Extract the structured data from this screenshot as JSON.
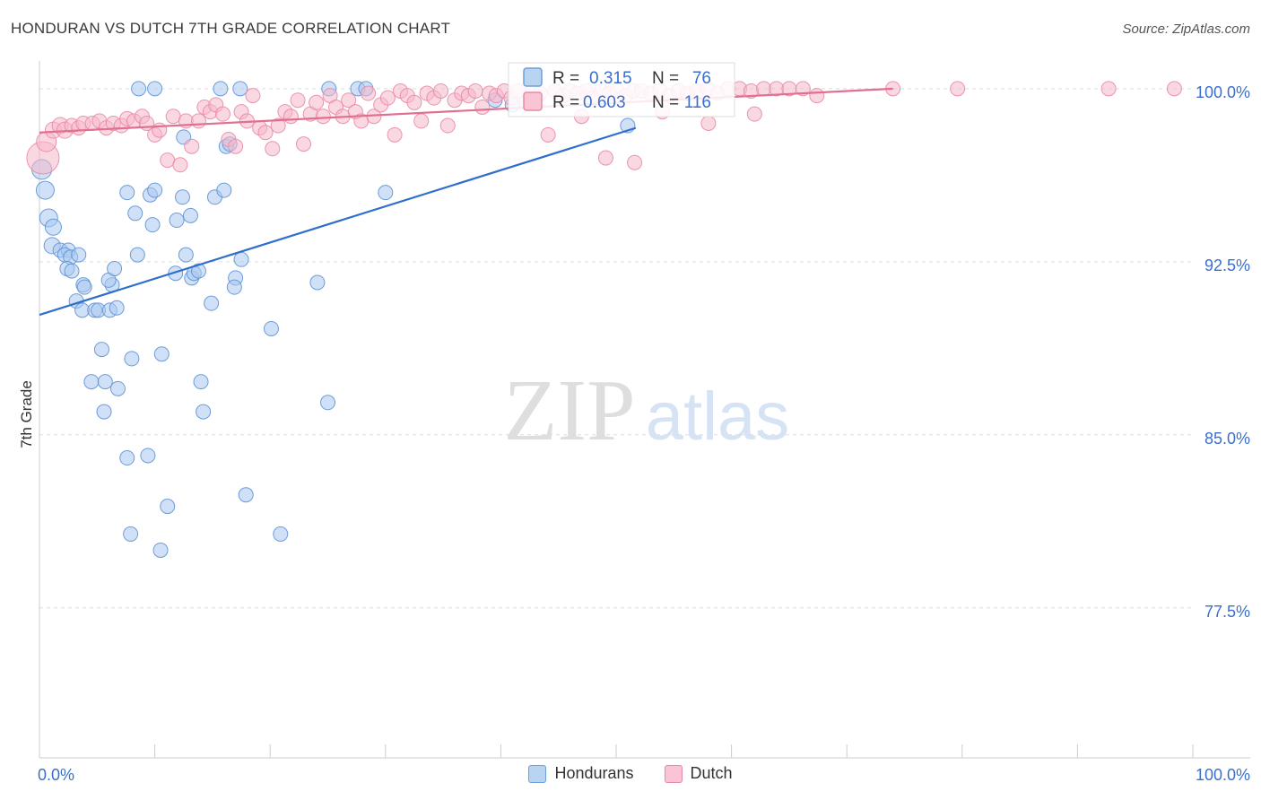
{
  "chart_data": {
    "type": "scatter",
    "title": "HONDURAN VS DUTCH 7TH GRADE CORRELATION CHART",
    "source": "Source: ZipAtlas.com",
    "watermark": {
      "zip": "ZIP",
      "atlas": "atlas"
    },
    "xlabel": "",
    "ylabel": "7th Grade",
    "xlim": [
      0,
      100
    ],
    "ylim": [
      71.0,
      101.2
    ],
    "x_tick_labels": {
      "left": "0.0%",
      "right": "100.0%"
    },
    "y_ticks": [
      {
        "value": 100.0,
        "label": "100.0%"
      },
      {
        "value": 92.5,
        "label": "92.5%"
      },
      {
        "value": 85.0,
        "label": "85.0%"
      },
      {
        "value": 77.5,
        "label": "77.5%"
      }
    ],
    "colors": {
      "honduran_fill": "#a9c9f0",
      "honduran_stroke": "#5d93d6",
      "honduran_line": "#2f6fcc",
      "dutch_fill": "#f6b8cb",
      "dutch_stroke": "#e98aa8",
      "dutch_line": "#e0708f",
      "value_text": "#3a6fcd",
      "grid": "#dddddd"
    },
    "legend_stats": [
      {
        "name": "Hondurans",
        "r_label": "R =",
        "r": "0.315",
        "n_label": "N =",
        "n": "76"
      },
      {
        "name": "Dutch",
        "r_label": "R =",
        "r": "0.603",
        "n_label": "N =",
        "n": "116"
      }
    ],
    "series": [
      {
        "name": "Hondurans",
        "trend": {
          "x": [
            0,
            51.7
          ],
          "y": [
            90.2,
            98.3
          ]
        },
        "points": [
          [
            0.2,
            96.5,
            11
          ],
          [
            0.5,
            95.6,
            10
          ],
          [
            0.8,
            94.4,
            10
          ],
          [
            1.2,
            94.0,
            9
          ],
          [
            1.1,
            93.2,
            9
          ],
          [
            1.8,
            93.0,
            8
          ],
          [
            2.5,
            93.0,
            8
          ],
          [
            2.2,
            92.8,
            8
          ],
          [
            2.7,
            92.7,
            8
          ],
          [
            3.4,
            92.8,
            8
          ],
          [
            2.4,
            92.2,
            8
          ],
          [
            2.8,
            92.1,
            8
          ],
          [
            3.8,
            91.5,
            8
          ],
          [
            3.9,
            91.4,
            8
          ],
          [
            3.2,
            90.8,
            8
          ],
          [
            3.7,
            90.4,
            8
          ],
          [
            4.8,
            90.4,
            8
          ],
          [
            5.1,
            90.4,
            8
          ],
          [
            6.1,
            90.4,
            8
          ],
          [
            6.7,
            90.5,
            8
          ],
          [
            6.3,
            91.5,
            8
          ],
          [
            6.0,
            91.7,
            8
          ],
          [
            6.5,
            92.2,
            8
          ],
          [
            8.5,
            92.8,
            8
          ],
          [
            5.4,
            88.7,
            8
          ],
          [
            8.0,
            88.3,
            8
          ],
          [
            10.6,
            88.5,
            8
          ],
          [
            4.5,
            87.3,
            8
          ],
          [
            5.7,
            87.3,
            8
          ],
          [
            6.8,
            87.0,
            8
          ],
          [
            5.6,
            86.0,
            8
          ],
          [
            7.6,
            84.0,
            8
          ],
          [
            9.4,
            84.1,
            8
          ],
          [
            11.1,
            81.9,
            8
          ],
          [
            7.9,
            80.7,
            8
          ],
          [
            10.5,
            80.0,
            8
          ],
          [
            8.3,
            94.6,
            8
          ],
          [
            9.6,
            95.4,
            8
          ],
          [
            7.6,
            95.5,
            8
          ],
          [
            9.8,
            94.1,
            8
          ],
          [
            10.0,
            95.6,
            8
          ],
          [
            11.9,
            94.3,
            8
          ],
          [
            12.4,
            95.3,
            8
          ],
          [
            13.1,
            94.5,
            8
          ],
          [
            12.7,
            92.8,
            8
          ],
          [
            11.8,
            92.0,
            8
          ],
          [
            13.2,
            91.8,
            8
          ],
          [
            13.4,
            92.0,
            8
          ],
          [
            13.8,
            92.1,
            8
          ],
          [
            14.0,
            87.3,
            8
          ],
          [
            14.2,
            86.0,
            8
          ],
          [
            14.9,
            90.7,
            8
          ],
          [
            15.2,
            95.3,
            8
          ],
          [
            16.0,
            95.6,
            8
          ],
          [
            16.2,
            97.5,
            8
          ],
          [
            16.5,
            97.6,
            8
          ],
          [
            17.0,
            91.8,
            8
          ],
          [
            16.9,
            91.4,
            8
          ],
          [
            17.5,
            92.6,
            8
          ],
          [
            17.9,
            82.4,
            8
          ],
          [
            20.1,
            89.6,
            8
          ],
          [
            20.9,
            80.7,
            8
          ],
          [
            24.1,
            91.6,
            8
          ],
          [
            25.0,
            86.4,
            8
          ],
          [
            12.5,
            97.9,
            8
          ],
          [
            8.6,
            100.0,
            8
          ],
          [
            10.0,
            100.0,
            8
          ],
          [
            15.7,
            100.0,
            8
          ],
          [
            17.4,
            100.0,
            8
          ],
          [
            25.1,
            100.0,
            8
          ],
          [
            27.6,
            100.0,
            8
          ],
          [
            28.3,
            100.0,
            8
          ],
          [
            30.0,
            95.5,
            8
          ],
          [
            39.5,
            99.5,
            8
          ],
          [
            41.0,
            99.3,
            8
          ],
          [
            51.0,
            98.4,
            8
          ]
        ]
      },
      {
        "name": "Dutch",
        "trend": {
          "x": [
            0,
            74.0
          ],
          "y": [
            98.1,
            100.0
          ]
        },
        "points": [
          [
            0.3,
            97.0,
            18
          ],
          [
            0.6,
            97.7,
            11
          ],
          [
            1.2,
            98.2,
            9
          ],
          [
            1.8,
            98.4,
            9
          ],
          [
            2.2,
            98.2,
            9
          ],
          [
            2.8,
            98.4,
            8
          ],
          [
            3.4,
            98.3,
            8
          ],
          [
            3.8,
            98.5,
            8
          ],
          [
            4.6,
            98.5,
            8
          ],
          [
            5.2,
            98.6,
            8
          ],
          [
            5.8,
            98.3,
            8
          ],
          [
            6.4,
            98.5,
            8
          ],
          [
            7.1,
            98.4,
            8
          ],
          [
            7.6,
            98.7,
            8
          ],
          [
            8.2,
            98.6,
            8
          ],
          [
            8.9,
            98.8,
            8
          ],
          [
            9.3,
            98.5,
            8
          ],
          [
            10.0,
            98.0,
            8
          ],
          [
            10.4,
            98.2,
            8
          ],
          [
            11.1,
            96.9,
            8
          ],
          [
            11.6,
            98.8,
            8
          ],
          [
            12.2,
            96.7,
            8
          ],
          [
            12.7,
            98.6,
            8
          ],
          [
            13.2,
            97.5,
            8
          ],
          [
            13.8,
            98.6,
            8
          ],
          [
            14.3,
            99.2,
            8
          ],
          [
            14.8,
            99.0,
            8
          ],
          [
            15.3,
            99.3,
            8
          ],
          [
            15.9,
            98.9,
            8
          ],
          [
            16.4,
            97.8,
            8
          ],
          [
            17.0,
            97.5,
            8
          ],
          [
            17.5,
            99.0,
            8
          ],
          [
            18.0,
            98.6,
            8
          ],
          [
            18.5,
            99.7,
            8
          ],
          [
            19.1,
            98.3,
            8
          ],
          [
            19.6,
            98.1,
            8
          ],
          [
            20.2,
            97.4,
            8
          ],
          [
            20.7,
            98.4,
            8
          ],
          [
            21.3,
            99.0,
            8
          ],
          [
            21.8,
            98.8,
            8
          ],
          [
            22.4,
            99.5,
            8
          ],
          [
            22.9,
            97.6,
            8
          ],
          [
            23.5,
            98.9,
            8
          ],
          [
            24.0,
            99.4,
            8
          ],
          [
            24.6,
            98.8,
            8
          ],
          [
            25.2,
            99.7,
            8
          ],
          [
            25.7,
            99.2,
            8
          ],
          [
            26.3,
            98.8,
            8
          ],
          [
            26.8,
            99.5,
            8
          ],
          [
            27.4,
            99.0,
            8
          ],
          [
            27.9,
            98.6,
            8
          ],
          [
            28.5,
            99.8,
            8
          ],
          [
            29.0,
            98.8,
            8
          ],
          [
            29.6,
            99.3,
            8
          ],
          [
            30.2,
            99.6,
            8
          ],
          [
            30.8,
            98.0,
            8
          ],
          [
            31.3,
            99.9,
            8
          ],
          [
            31.9,
            99.7,
            8
          ],
          [
            32.5,
            99.4,
            8
          ],
          [
            33.1,
            98.6,
            8
          ],
          [
            33.6,
            99.8,
            8
          ],
          [
            34.2,
            99.6,
            8
          ],
          [
            34.8,
            99.9,
            8
          ],
          [
            35.4,
            98.4,
            8
          ],
          [
            36.0,
            99.5,
            8
          ],
          [
            36.6,
            99.8,
            8
          ],
          [
            37.2,
            99.7,
            8
          ],
          [
            37.8,
            99.9,
            8
          ],
          [
            38.4,
            99.2,
            8
          ],
          [
            39.0,
            99.8,
            8
          ],
          [
            39.6,
            99.7,
            8
          ],
          [
            40.3,
            99.9,
            8
          ],
          [
            40.9,
            99.6,
            8
          ],
          [
            41.5,
            99.9,
            8
          ],
          [
            42.2,
            99.4,
            8
          ],
          [
            42.8,
            99.9,
            8
          ],
          [
            43.4,
            99.8,
            8
          ],
          [
            44.1,
            98.0,
            8
          ],
          [
            44.7,
            99.9,
            8
          ],
          [
            45.4,
            99.7,
            8
          ],
          [
            46.0,
            99.9,
            8
          ],
          [
            46.7,
            99.8,
            8
          ],
          [
            47.4,
            99.9,
            8
          ],
          [
            48.0,
            99.6,
            8
          ],
          [
            48.7,
            99.9,
            8
          ],
          [
            49.4,
            99.8,
            8
          ],
          [
            50.1,
            99.9,
            8
          ],
          [
            50.8,
            99.7,
            8
          ],
          [
            51.5,
            99.9,
            8
          ],
          [
            52.2,
            99.9,
            8
          ],
          [
            53.0,
            99.8,
            8
          ],
          [
            53.8,
            99.9,
            8
          ],
          [
            54.6,
            99.7,
            8
          ],
          [
            55.4,
            99.9,
            8
          ],
          [
            56.2,
            99.8,
            8
          ],
          [
            57.0,
            99.9,
            8
          ],
          [
            57.9,
            100.0,
            8
          ],
          [
            58.8,
            99.8,
            8
          ],
          [
            59.7,
            100.0,
            8
          ],
          [
            60.7,
            100.0,
            8
          ],
          [
            61.7,
            99.9,
            8
          ],
          [
            62.8,
            100.0,
            8
          ],
          [
            63.9,
            100.0,
            8
          ],
          [
            65.0,
            100.0,
            8
          ],
          [
            66.2,
            100.0,
            8
          ],
          [
            74.0,
            100.0,
            8
          ],
          [
            79.6,
            100.0,
            8
          ],
          [
            92.7,
            100.0,
            8
          ],
          [
            98.4,
            100.0,
            8
          ],
          [
            49.1,
            97.0,
            8
          ],
          [
            51.6,
            96.8,
            8
          ],
          [
            67.4,
            99.7,
            8
          ],
          [
            58.0,
            98.5,
            8
          ],
          [
            62.0,
            98.9,
            8
          ],
          [
            47.0,
            98.8,
            8
          ],
          [
            54.0,
            99.0,
            8
          ]
        ]
      }
    ]
  }
}
